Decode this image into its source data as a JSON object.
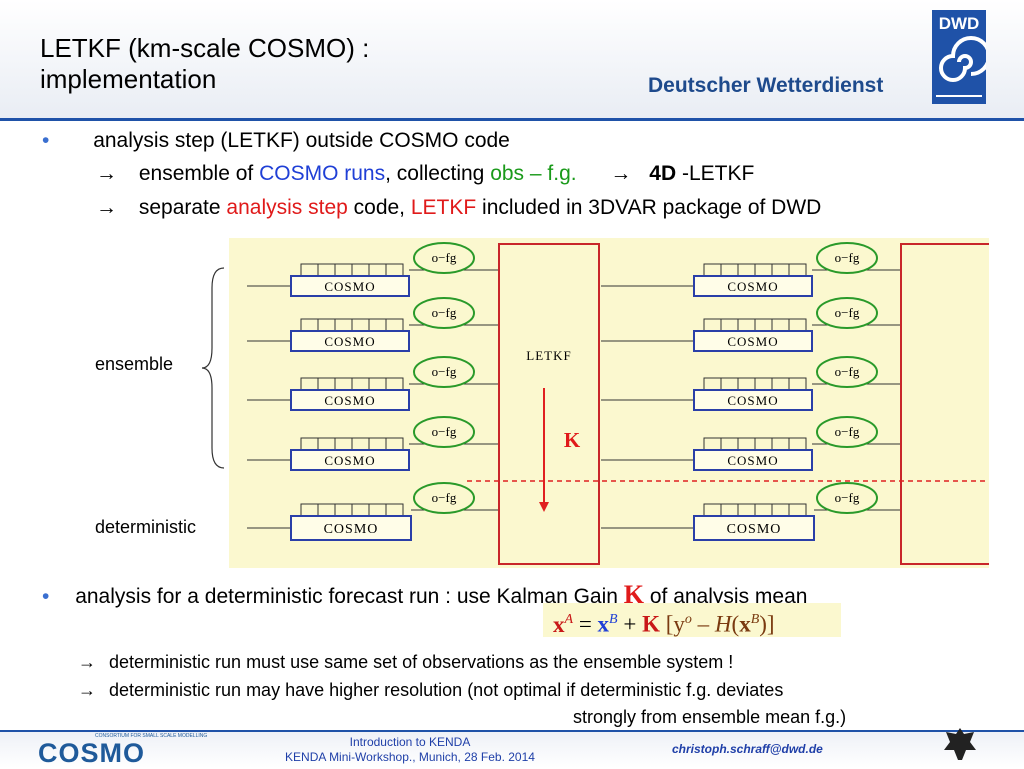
{
  "header": {
    "title_line1": "LETKF  (km-scale COSMO) :",
    "title_line2": "implementation",
    "brand": "Deutscher Wetterdienst",
    "logo_text": "DWD"
  },
  "bullets": {
    "b1": "analysis step (LETKF) outside COSMO code",
    "b1_arrow": "→",
    "b1_l2_a": "ensemble of ",
    "b1_l2_b": "COSMO runs",
    "b1_l2_c": ",  collecting ",
    "b1_l2_d": "obs – f.g.",
    "b1_l2_e": "4D",
    "b1_l2_f": " -LETKF",
    "b1_l3_a": "separate ",
    "b1_l3_b": "analysis step",
    "b1_l3_c": " code, ",
    "b1_l3_d": "LETKF",
    "b1_l3_e": " included in 3DVAR package of DWD",
    "b2_a": "analysis for a deterministic forecast run :   use Kalman Gain ",
    "b2_k": "K",
    "b2_b": "  of analysis mean"
  },
  "diagram": {
    "ensemble_label": "ensemble",
    "deterministic_label": "deterministic",
    "model_label": "COSMO",
    "ofg_label": "o−fg",
    "letkf_label": "LETKF",
    "k_label": "K"
  },
  "equation": {
    "xA": "x",
    "supA": "A",
    "eq": "  = ",
    "xB": "x",
    "supB": "B",
    "plus": " + ",
    "K": "K",
    "bracket_open": " [y",
    "supo": "o",
    "minus": " – ",
    "H": "H",
    "paren_open": "(",
    "x2": "x",
    "supB2": "B",
    "close": ")]"
  },
  "notes": {
    "arrow": "→",
    "n1": "deterministic run must use same set of observations as the ensemble system !",
    "n2": "deterministic run may have higher resolution  (not optimal if deterministic f.g. deviates",
    "n2b": "strongly from ensemble mean f.g.)"
  },
  "footer": {
    "line1": "Introduction to KENDA",
    "line2": "KENDA Mini-Workshop.,  Munich,  28 Feb. 2014",
    "email": "christoph.schraff@dwd.de",
    "logo": "COSMO",
    "logo_sub": "CONSORTIUM FOR SMALL SCALE MODELLING"
  },
  "colors": {
    "accent_blue": "#1f52a8",
    "highlight_blue": "#1f3fd6",
    "highlight_green": "#1a9a1a",
    "highlight_red": "#e01a1a",
    "diagram_bg": "#fbf8cf"
  }
}
